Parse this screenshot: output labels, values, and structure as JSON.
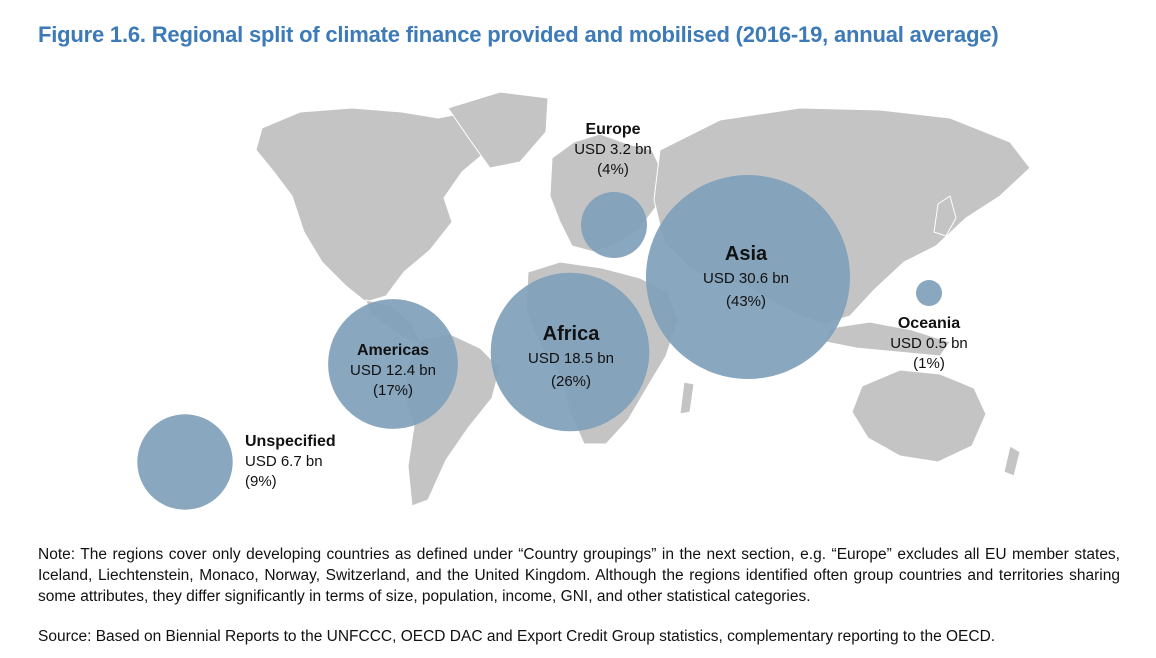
{
  "figure": {
    "title": "Figure 1.6. Regional split of climate finance provided and mobilised (2016-19, annual average)",
    "note": "Note: The regions cover only developing countries as defined under “Country groupings” in the next section, e.g. “Europe” excludes all EU member states, Iceland, Liechtenstein, Monaco, Norway, Switzerland, and the United Kingdom. Although the regions identified often group countries and territories sharing some attributes, they differ significantly in terms of size, population, income, GNI, and other statistical categories.",
    "source": "Source: Based on Biennial Reports to the UNFCCC, OECD DAC and Export Credit Group statistics, complementary reporting to the OECD."
  },
  "colors": {
    "bubble": "#7f9fba",
    "land": "#c4c4c4",
    "title": "#3d7ab8"
  },
  "chart_data": {
    "type": "bubble-map",
    "unit": "USD bn",
    "categories": [
      "Europe",
      "Asia",
      "Oceania",
      "Americas",
      "Africa",
      "Unspecified"
    ],
    "values": [
      3.2,
      30.6,
      0.5,
      12.4,
      18.5,
      6.7
    ],
    "labels": [
      {
        "name": "Europe",
        "value": "USD 3.2 bn",
        "share": "(4%)"
      },
      {
        "name": "Asia",
        "value": "USD 30.6 bn",
        "share": "(43%)"
      },
      {
        "name": "Oceania",
        "value": "USD 0.5 bn",
        "share": "(1%)"
      },
      {
        "name": "Americas",
        "value": "USD 12.4 bn",
        "share": "(17%)"
      },
      {
        "name": "Africa",
        "value": "USD 18.5 bn",
        "share": "(26%)"
      },
      {
        "name": "Unspecified",
        "value": "USD 6.7 bn",
        "share": "(9%)"
      }
    ]
  }
}
